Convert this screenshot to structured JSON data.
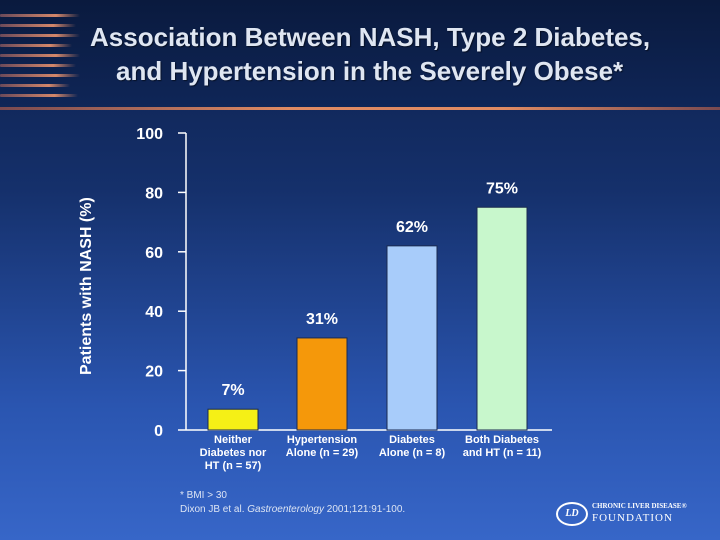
{
  "slide": {
    "title_line1": "Association Between NASH, Type 2 Diabetes,",
    "title_line2": "and Hypertension in the Severely Obese*"
  },
  "chart_data": {
    "type": "bar",
    "title": "Association Between NASH, Type 2 Diabetes, and Hypertension in the Severely Obese*",
    "xlabel": "",
    "ylabel": "Patients with NASH (%)",
    "ylim": [
      0,
      100
    ],
    "yticks": [
      0,
      20,
      40,
      60,
      80,
      100
    ],
    "grid": false,
    "categories": [
      [
        "Neither",
        "Diabetes nor",
        "HT (n = 57)"
      ],
      [
        "Hypertension",
        "Alone (n = 29)"
      ],
      [
        "Diabetes",
        "Alone (n = 8)"
      ],
      [
        "Both Diabetes",
        "and HT (n = 11)"
      ]
    ],
    "values": [
      7,
      31,
      62,
      75
    ],
    "data_labels": [
      "7%",
      "31%",
      "62%",
      "75%"
    ],
    "colors": [
      "#f5f016",
      "#f5980a",
      "#a8ccfa",
      "#c8f7cc"
    ]
  },
  "footnote": {
    "line1": "* BMI > 30",
    "line2_prefix": "Dixon JB et al. ",
    "line2_journal": "Gastroenterology",
    "line2_suffix": " 2001;121:91-100."
  },
  "logo": {
    "mark": "LD",
    "top": "CHRONIC LIVER DISEASE®",
    "bottom": "FOUNDATION"
  }
}
